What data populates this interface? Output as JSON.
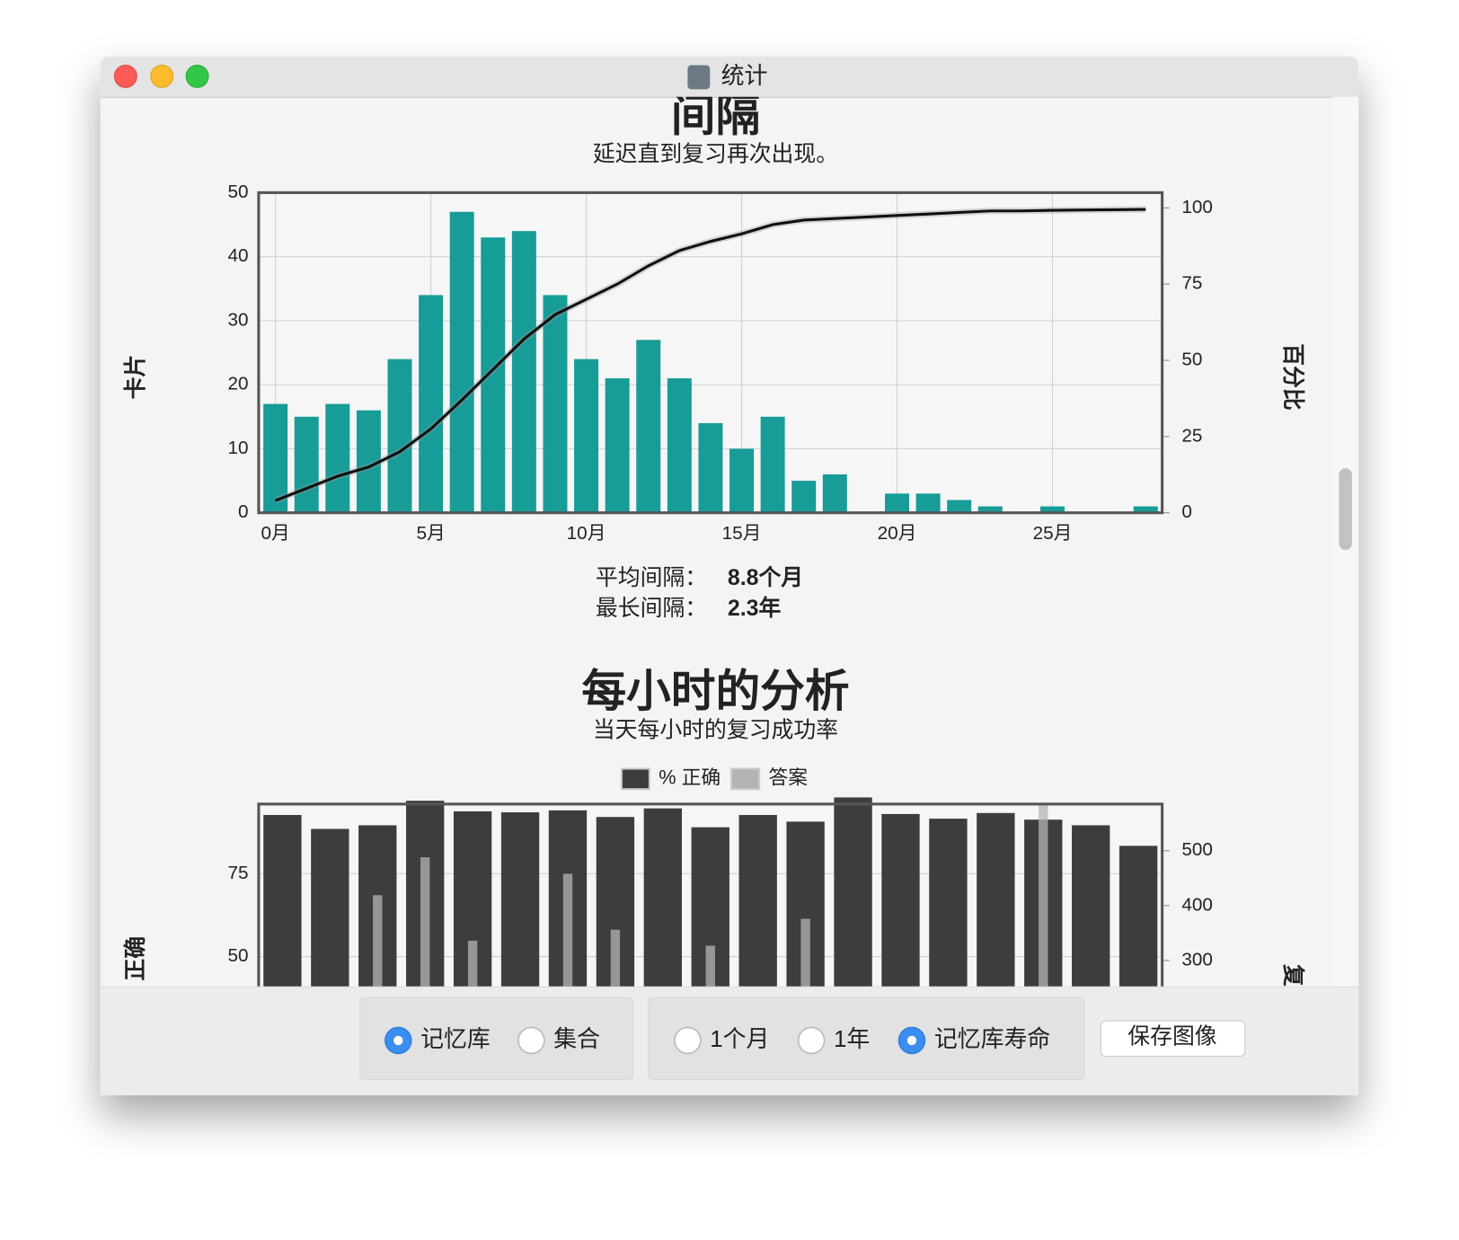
{
  "window": {
    "title": "统计"
  },
  "chart_data": [
    {
      "type": "bar",
      "title": "间隔",
      "subtitle": "延迟直到复习再次出现。",
      "ylabel": "卡片",
      "y2label": "百分比",
      "x": [
        0,
        1,
        2,
        3,
        4,
        5,
        6,
        7,
        8,
        9,
        10,
        11,
        12,
        13,
        14,
        15,
        16,
        17,
        18,
        19,
        20,
        21,
        22,
        23,
        24,
        25,
        26,
        27,
        28
      ],
      "series": [
        {
          "type": "bar",
          "color": "#179c98",
          "values": [
            17,
            15,
            17,
            16,
            24,
            34,
            47,
            43,
            44,
            34,
            24,
            21,
            27,
            21,
            14,
            10,
            15,
            5,
            6,
            0,
            3,
            3,
            2,
            1,
            0,
            1,
            0,
            0,
            1
          ]
        },
        {
          "type": "line",
          "axis": "y2",
          "color": "#111111",
          "values": [
            4,
            8,
            12,
            15,
            20,
            27.5,
            37,
            47,
            57,
            65,
            70,
            75,
            81,
            86,
            89,
            91.5,
            94.5,
            96,
            96.5,
            97,
            97.5,
            98,
            98.5,
            99,
            99,
            99.2,
            99.3,
            99.4,
            99.5
          ]
        }
      ],
      "xlim": [
        -0.54,
        28.53
      ],
      "xticks": [
        {
          "value": 0,
          "label": "0月"
        },
        {
          "value": 5,
          "label": "5月"
        },
        {
          "value": 10,
          "label": "10月"
        },
        {
          "value": 15,
          "label": "15月"
        },
        {
          "value": 20,
          "label": "20月"
        },
        {
          "value": 25,
          "label": "25月"
        }
      ],
      "ylim": [
        0,
        50
      ],
      "yticks": [
        0,
        10,
        20,
        30,
        40,
        50
      ],
      "y2lim": [
        0,
        105
      ],
      "y2ticks": [
        0,
        25,
        50,
        75,
        100
      ],
      "grid": true,
      "stats": [
        {
          "label": "平均间隔：",
          "value": "8.8个月"
        },
        {
          "label": "最长间隔：",
          "value": "2.3年"
        }
      ]
    },
    {
      "type": "bar",
      "title": "每小时的分析",
      "subtitle": "当天每小时的复习成功率",
      "ylabel": "正确",
      "y2label": "复习",
      "series": [
        {
          "name": "% 正确",
          "color": "#3d3d3d",
          "values": [
            92.7,
            88.5,
            89.6,
            97,
            93.8,
            93.5,
            94.1,
            92.1,
            94.7,
            89,
            92.7,
            90.7,
            98,
            93,
            91.6,
            93.3,
            91.3,
            89.6,
            83.4
          ]
        },
        {
          "name": "答案",
          "color": "#b4b4b4",
          "axis": "y2",
          "values": [
            null,
            null,
            419,
            488,
            336,
            null,
            458,
            356,
            null,
            327,
            null,
            376,
            null,
            null,
            null,
            null,
            583,
            null,
            null
          ]
        }
      ],
      "ylim": [
        0,
        96
      ],
      "yticks": [
        50,
        75
      ],
      "y2lim": [
        5,
        585
      ],
      "y2ticks": [
        300,
        400,
        500
      ],
      "legend": "top"
    }
  ],
  "toolbar": {
    "groups": [
      {
        "options": [
          {
            "label": "记忆库",
            "selected": true
          },
          {
            "label": "集合",
            "selected": false
          }
        ]
      },
      {
        "options": [
          {
            "label": "1个月",
            "selected": false
          },
          {
            "label": "1年",
            "selected": false
          },
          {
            "label": "记忆库寿命",
            "selected": true
          }
        ]
      }
    ],
    "button": "保存图像"
  }
}
